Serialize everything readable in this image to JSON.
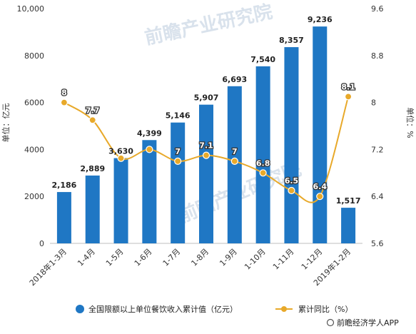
{
  "chart_data": {
    "type": "bar",
    "categories": [
      "2018年1-3月",
      "1-4月",
      "1-5月",
      "1-6月",
      "1-7月",
      "1-8月",
      "1-9月",
      "1-10月",
      "1-11月",
      "1-12月",
      "2019年1-2月"
    ],
    "series": [
      {
        "name": "全国限额以上单位餐饮收入累计值（亿元）",
        "type": "bar",
        "axis": "left",
        "color": "#1f77c4",
        "values": [
          2186,
          2889,
          3630,
          4399,
          5146,
          5907,
          6693,
          7540,
          8357,
          9236,
          1517
        ],
        "labels": [
          "2,186",
          "2,889",
          "3,630",
          "4,399",
          "5,146",
          "5,907",
          "6,693",
          "7,540",
          "8,357",
          "9,236",
          "1,517"
        ]
      },
      {
        "name": "累计同比（%）",
        "type": "line",
        "axis": "right",
        "color": "#e8a92a",
        "values": [
          8,
          7.7,
          7.05,
          7.2,
          7,
          7.1,
          7,
          6.8,
          6.5,
          6.4,
          8.1
        ],
        "labels": [
          "8",
          "7.7",
          "",
          "",
          "7",
          "7.1",
          "7",
          "6.8",
          "6.5",
          "6.4",
          "8.1"
        ]
      }
    ],
    "y_left": {
      "label": "单位：亿元",
      "lim": [
        0,
        10000
      ],
      "ticks": [
        0,
        2000,
        4000,
        6000,
        8000,
        10000
      ],
      "tick_labels": [
        "0",
        "2000",
        "4000",
        "6000",
        "8000",
        "10,000"
      ]
    },
    "y_right": {
      "label": "单位：%",
      "lim": [
        5.6,
        9.6
      ],
      "ticks": [
        5.6,
        6.4,
        7.2,
        8,
        8.8,
        9.6
      ],
      "tick_labels": [
        "5.6",
        "6.4",
        "7.2",
        "8",
        "8.8",
        "9.6"
      ]
    },
    "grid": false,
    "legend": "bottom",
    "watermark": "前瞻产业研究院",
    "source": "前瞻经济学人APP"
  }
}
